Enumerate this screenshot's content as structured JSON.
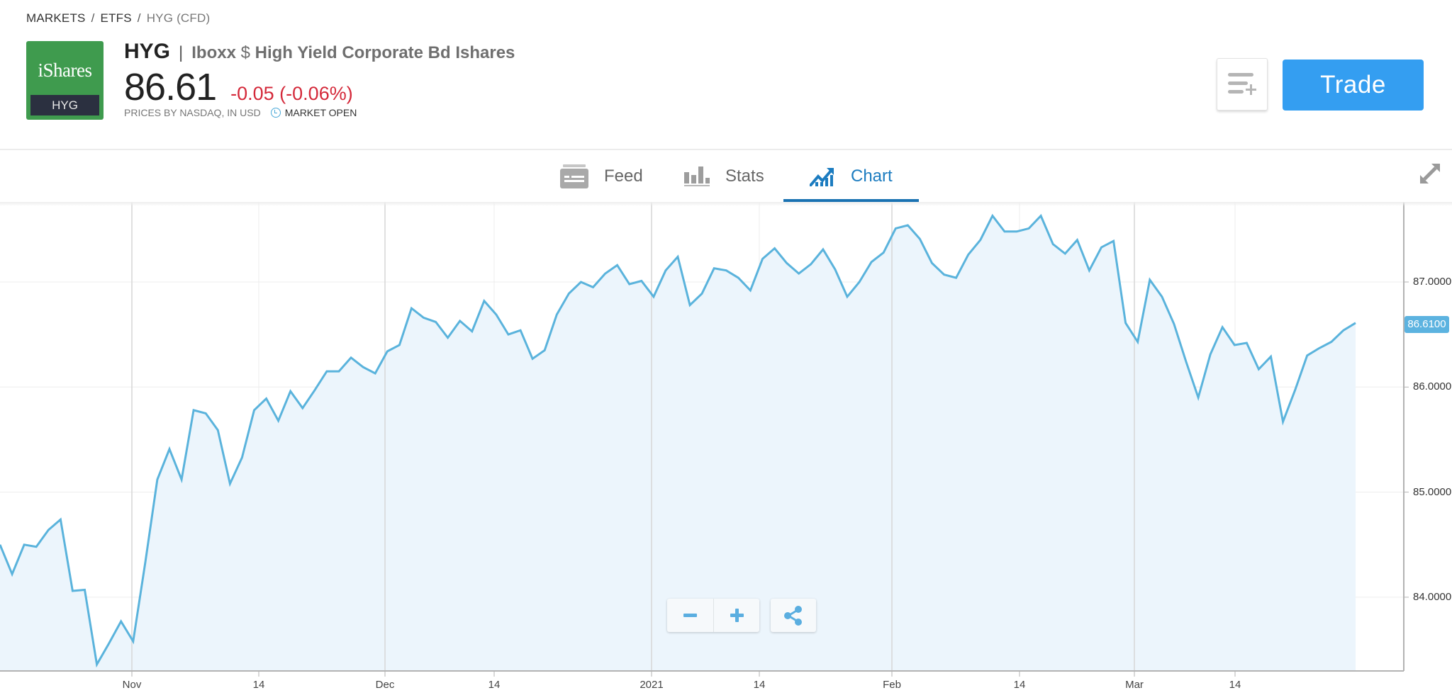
{
  "breadcrumb": {
    "items": [
      "MARKETS",
      "ETFS",
      "HYG (CFD)"
    ],
    "separator": "/"
  },
  "instrument": {
    "logo_brand": "iShares",
    "logo_ticker": "HYG",
    "symbol": "HYG",
    "divider": "|",
    "name_part1": "Iboxx",
    "name_dollar": "$",
    "name_part2": "High Yield Corporate Bd Ishares",
    "price": "86.61",
    "change": "-0.05 (-0.06%)",
    "price_source": "PRICES BY NASDAQ, IN USD",
    "market_status": "MARKET OPEN"
  },
  "actions": {
    "watchlist_icon": "add-to-watchlist-icon",
    "trade_label": "Trade"
  },
  "tabs": [
    {
      "label": "Feed",
      "icon": "feed-icon",
      "active": false
    },
    {
      "label": "Stats",
      "icon": "stats-icon",
      "active": false
    },
    {
      "label": "Chart",
      "icon": "chart-icon",
      "active": true
    }
  ],
  "chart_controls": {
    "zoom_out": "minus-icon",
    "zoom_in": "plus-icon",
    "share": "share-icon",
    "expand": "expand-icon"
  },
  "colors": {
    "accent": "#349ef1",
    "tab_active": "#1c7cc0",
    "negative": "#d4293a",
    "line": "#5ab3dc",
    "area": "#ecf5fc",
    "logo_green": "#3f9b4e"
  },
  "chart_data": {
    "type": "area",
    "title": "",
    "xlabel": "",
    "ylabel": "",
    "x_tick_labels": [
      "Nov",
      "14",
      "Dec",
      "14",
      "2021",
      "14",
      "Feb",
      "14",
      "Mar",
      "14"
    ],
    "y_tick_labels": [
      "87.0000",
      "86.0000",
      "85.0000",
      "84.0000"
    ],
    "ylim": [
      83.6,
      87.8
    ],
    "last_price_label": "86.6100",
    "grid": true,
    "series": [
      {
        "name": "HYG",
        "values": [
          84.5,
          84.22,
          84.5,
          84.48,
          84.64,
          84.74,
          84.06,
          84.07,
          83.36,
          83.56,
          83.77,
          83.58,
          84.33,
          85.12,
          85.41,
          85.12,
          85.78,
          85.75,
          85.59,
          85.08,
          85.33,
          85.78,
          85.89,
          85.68,
          85.96,
          85.8,
          85.97,
          86.15,
          86.15,
          86.28,
          86.19,
          86.13,
          86.34,
          86.4,
          86.75,
          86.66,
          86.62,
          86.47,
          86.63,
          86.53,
          86.82,
          86.69,
          86.5,
          86.54,
          86.27,
          86.35,
          86.69,
          86.89,
          87.0,
          86.95,
          87.08,
          87.16,
          86.98,
          87.01,
          86.86,
          87.11,
          87.24,
          86.78,
          86.89,
          87.13,
          87.11,
          87.04,
          86.92,
          87.22,
          87.32,
          87.18,
          87.08,
          87.17,
          87.31,
          87.12,
          86.86,
          87.0,
          87.19,
          87.28,
          87.51,
          87.54,
          87.41,
          87.18,
          87.07,
          87.04,
          87.26,
          87.4,
          87.63,
          87.48,
          87.48,
          87.51,
          87.63,
          87.36,
          87.27,
          87.4,
          87.11,
          87.33,
          87.39,
          86.61,
          86.43,
          87.02,
          86.86,
          86.6,
          86.24,
          85.9,
          86.31,
          86.57,
          86.4,
          86.42,
          86.17,
          86.29,
          85.67,
          85.97,
          86.3,
          86.37,
          86.43,
          86.54,
          86.61
        ]
      }
    ]
  }
}
